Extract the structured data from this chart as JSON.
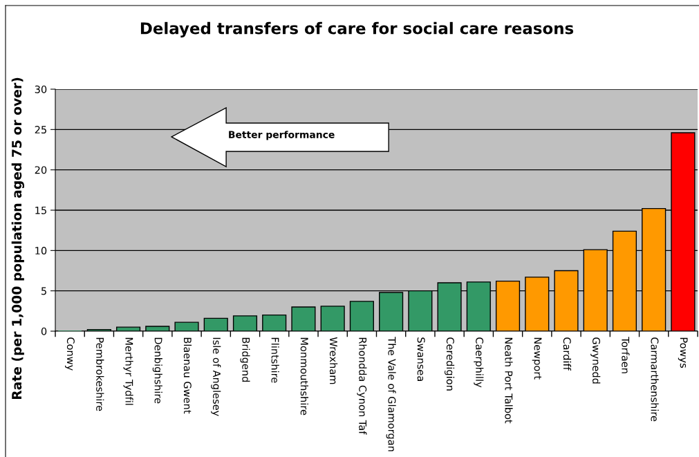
{
  "chart_data": {
    "type": "bar",
    "title": "Delayed transfers of care for social care reasons",
    "ylabel": "Rate (per 1,000 population aged 75 or over)",
    "categories": [
      "Conwy",
      "Pembrokeshire",
      "Merthyr Tydfil",
      "Denbighshire",
      "Blaenau Gwent",
      "Isle of Anglesey",
      "Bridgend",
      "Flintshire",
      "Monmouthshire",
      "Wrexham",
      "Rhondda Cynon Taf",
      "The Vale of Glamorgan",
      "Swansea",
      "Ceredigion",
      "Caerphilly",
      "Neath Port Talbot",
      "Newport",
      "Cardiff",
      "Gwynedd",
      "Torfaen",
      "Carmarthenshire",
      "Powys"
    ],
    "values": [
      0,
      0.2,
      0.5,
      0.6,
      1.1,
      1.6,
      1.9,
      2.0,
      3.0,
      3.1,
      3.7,
      4.8,
      5.0,
      6.0,
      6.1,
      6.2,
      6.7,
      7.5,
      10.1,
      12.4,
      15.2,
      24.6
    ],
    "colors": [
      "#339966",
      "#339966",
      "#339966",
      "#339966",
      "#339966",
      "#339966",
      "#339966",
      "#339966",
      "#339966",
      "#339966",
      "#339966",
      "#339966",
      "#339966",
      "#339966",
      "#339966",
      "#ff9900",
      "#ff9900",
      "#ff9900",
      "#ff9900",
      "#ff9900",
      "#ff9900",
      "#ff0000"
    ],
    "ylim": [
      0,
      30
    ],
    "yticks": [
      0,
      5,
      10,
      15,
      20,
      25,
      30
    ],
    "grid": "y",
    "annotations": [
      "Better performance"
    ]
  }
}
